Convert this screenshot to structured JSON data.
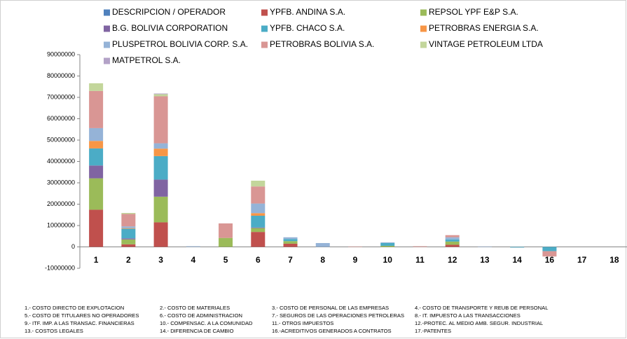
{
  "chart_data": {
    "type": "stacked_bar",
    "categories": [
      "1",
      "2",
      "3",
      "4",
      "5",
      "6",
      "7",
      "8",
      "9",
      "10",
      "11",
      "12",
      "13",
      "14",
      "16",
      "17",
      "18"
    ],
    "series": [
      {
        "name": "DESCRIPCION  /  OPERADOR",
        "color": "#4f81bd",
        "values": [
          0,
          0,
          0,
          0,
          0,
          0,
          0,
          0,
          0,
          0,
          0,
          0,
          0,
          0,
          0,
          0,
          0
        ]
      },
      {
        "name": "YPFB. ANDINA S.A.",
        "color": "#c0504d",
        "values": [
          17400000,
          1200000,
          11500000,
          0,
          0,
          7000000,
          1500000,
          0,
          0,
          0,
          0,
          1000000,
          0,
          0,
          0,
          0,
          0
        ]
      },
      {
        "name": "REPSOL YPF E&P S.A.",
        "color": "#9bbb59",
        "values": [
          14700000,
          2300000,
          12000000,
          0,
          4200000,
          1800000,
          1200000,
          0,
          0,
          500000,
          0,
          1500000,
          0,
          0,
          0,
          0,
          0
        ]
      },
      {
        "name": "B.G. BOLIVIA CORPORATION",
        "color": "#8064a2",
        "values": [
          6000000,
          500000,
          8000000,
          0,
          0,
          300000,
          0,
          0,
          0,
          0,
          0,
          0,
          0,
          0,
          0,
          0,
          0
        ]
      },
      {
        "name": "YPFB. CHACO S.A.",
        "color": "#4bacc6",
        "values": [
          8000000,
          4500000,
          11000000,
          0,
          0,
          5500000,
          1000000,
          0,
          0,
          1300000,
          0,
          1000000,
          0,
          -300000,
          -2000000,
          0,
          0
        ]
      },
      {
        "name": "PETROBRAS ENERGIA S.A.",
        "color": "#f79646",
        "values": [
          3500000,
          300000,
          3500000,
          0,
          0,
          1200000,
          0,
          0,
          0,
          0,
          0,
          0,
          0,
          0,
          0,
          0,
          0
        ]
      },
      {
        "name": "PLUSPETROL BOLIVIA CORP. S.A.",
        "color": "#95b3d7",
        "values": [
          6000000,
          800000,
          2500000,
          300000,
          0,
          4500000,
          800000,
          1800000,
          0,
          300000,
          0,
          1000000,
          200000,
          0,
          0,
          0,
          0
        ]
      },
      {
        "name": "PETROBRAS BOLIVIA S.A.",
        "color": "#d99694",
        "values": [
          17400000,
          5800000,
          22000000,
          0,
          6800000,
          8000000,
          0,
          0,
          200000,
          0,
          300000,
          1000000,
          0,
          0,
          -2500000,
          0,
          0
        ]
      },
      {
        "name": "VINTAGE PETROLEUM LTDA",
        "color": "#c3d69b",
        "values": [
          3600000,
          500000,
          1000000,
          0,
          0,
          2700000,
          0,
          0,
          0,
          0,
          0,
          0,
          0,
          0,
          0,
          0,
          0
        ]
      },
      {
        "name": "MATPETROL S.A.",
        "color": "#b3a2c7",
        "values": [
          0,
          0,
          300000,
          0,
          0,
          0,
          0,
          0,
          0,
          0,
          0,
          0,
          0,
          0,
          0,
          0,
          0
        ]
      }
    ],
    "ylim": [
      -10000000,
      90000000
    ],
    "yticks": [
      -10000000,
      0,
      10000000,
      20000000,
      30000000,
      40000000,
      50000000,
      60000000,
      70000000,
      80000000,
      90000000
    ],
    "grid": false,
    "legend": "top",
    "notes": [
      [
        "1.- COSTO DIRECTO DE EXPLOTACION",
        "2.- COSTO DE MATERIALES",
        "3.- COSTO DE PERSONAL DE LAS EMPRESAS",
        "4.- COSTO DE TRANSPORTE Y REUB DE PERSONAL"
      ],
      [
        "5.- COSTO DE TITULARES NO OPERADORES",
        "6.- COSTO DE ADMINISTRACION",
        "7.- SEGUROS DE LAS OPERACIONES PETROLERAS",
        "8.- IT. IMPUESTO A LAS TRANSACCIONES"
      ],
      [
        "9.- ITF. IMP. A LAS TRANSAC. FINANCIERAS",
        "10.- COMPENSAC. A LA COMUNIDAD",
        "11.- OTROS IMPUESTOS",
        "12.-PROTEC. AL MEDIO AMB. SEGUR. INDUSTRIAL"
      ],
      [
        "13.- COSTOS LEGALES",
        "14.- DIFERENCIA DE CAMBIO",
        "16.-ACREDITIVOS GENERADOS A CONTRATOS",
        "17.-PATENTES"
      ]
    ]
  }
}
